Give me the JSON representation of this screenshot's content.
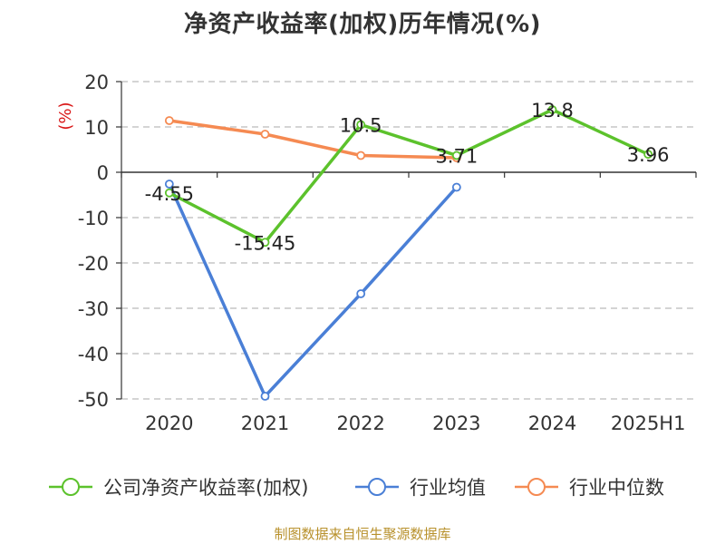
{
  "chart_data": {
    "type": "line",
    "title": "净资产收益率(加权)历年情况(%)",
    "ylabel": "(%)",
    "xlabel": "",
    "categories": [
      "2020",
      "2021",
      "2022",
      "2023",
      "2024",
      "2025H1"
    ],
    "ylim": [
      -50,
      20
    ],
    "yticks": [
      "20",
      "10",
      "0",
      "-10",
      "-20",
      "-30",
      "-40",
      "-50"
    ],
    "grid": true,
    "legend_position": "bottom",
    "series": [
      {
        "name": "公司净资产收益率(加权)",
        "color": "#5cc22c",
        "values": [
          -4.55,
          -15.45,
          10.5,
          3.71,
          13.8,
          3.96
        ],
        "labels": [
          "-4.55",
          "-15.45",
          "10.5",
          "3.71",
          "13.8",
          "3.96"
        ]
      },
      {
        "name": "行业均值",
        "color": "#4a7fd6",
        "values": [
          -2.6,
          -49.4,
          -26.8,
          -3.3,
          null,
          null
        ]
      },
      {
        "name": "行业中位数",
        "color": "#f58a52",
        "values": [
          11.4,
          8.4,
          3.7,
          3.2,
          null,
          null
        ]
      }
    ]
  },
  "source": "制图数据来自恒生聚源数据库",
  "colors": {
    "axis": "#333333",
    "grid": "#bbbbbb",
    "ylabel": "#d91818"
  }
}
